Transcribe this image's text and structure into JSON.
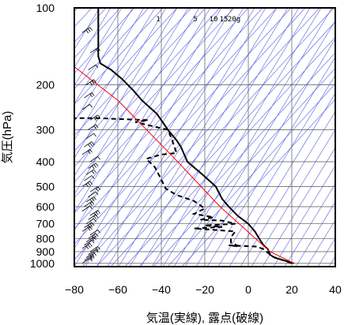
{
  "chart_data": {
    "type": "line",
    "title": "",
    "xlabel": "気温(実線), 露点(破線)",
    "ylabel": "気圧(hPa)",
    "xlim": [
      -80,
      40
    ],
    "ylim": [
      1030,
      100
    ],
    "y_scale": "log",
    "grid": true,
    "x_ticks": [
      -80,
      -60,
      -40,
      -20,
      0,
      20,
      40
    ],
    "x_tick_labels": [
      "−80",
      "−60",
      "−40",
      "−20",
      "0",
      "20",
      "40"
    ],
    "y_ticks": [
      100,
      200,
      300,
      400,
      500,
      600,
      700,
      800,
      900,
      1000
    ],
    "mixing_ratio_labels": [
      "1",
      "5",
      "10",
      "15",
      "20g"
    ],
    "series": [
      {
        "style": "solid",
        "color": "#000000",
        "points": [
          [
            21,
            1000
          ],
          [
            12,
            950
          ],
          [
            10,
            925
          ],
          [
            9,
            880
          ],
          [
            7,
            850
          ],
          [
            5,
            800
          ],
          [
            3,
            750
          ],
          [
            0,
            700
          ],
          [
            -5,
            650
          ],
          [
            -9,
            600
          ],
          [
            -12,
            560
          ],
          [
            -15,
            500
          ],
          [
            -21,
            450
          ],
          [
            -28,
            400
          ],
          [
            -31,
            350
          ],
          [
            -33,
            330
          ],
          [
            -37,
            300
          ],
          [
            -42,
            260
          ],
          [
            -49,
            230
          ],
          [
            -53,
            210
          ],
          [
            -58,
            190
          ],
          [
            -63,
            175
          ],
          [
            -68,
            165
          ],
          [
            -69,
            155
          ],
          [
            -69,
            100
          ]
        ]
      },
      {
        "style": "dashed",
        "color": "#000000",
        "points": [
          [
            20,
            1000
          ],
          [
            11,
            940
          ],
          [
            7,
            880
          ],
          [
            4,
            860
          ],
          [
            -9,
            850
          ],
          [
            -4,
            860
          ],
          [
            -8,
            830
          ],
          [
            -8,
            790
          ],
          [
            -6,
            750
          ],
          [
            -25,
            730
          ],
          [
            -12,
            720
          ],
          [
            -20,
            710
          ],
          [
            -6,
            700
          ],
          [
            -12,
            680
          ],
          [
            -22,
            675
          ],
          [
            -16,
            660
          ],
          [
            -25,
            640
          ],
          [
            -20,
            610
          ],
          [
            -25,
            570
          ],
          [
            -33,
            540
          ],
          [
            -38,
            510
          ],
          [
            -40,
            470
          ],
          [
            -43,
            420
          ],
          [
            -47,
            390
          ],
          [
            -40,
            375
          ],
          [
            -33,
            370
          ],
          [
            -35,
            330
          ],
          [
            -37,
            300
          ],
          [
            -52,
            280
          ],
          [
            -46,
            275
          ],
          [
            -70,
            270
          ],
          [
            -81,
            270
          ]
        ]
      },
      {
        "style": "solid",
        "color": "#ff0000",
        "points": [
          [
            21,
            1000
          ],
          [
            10,
            900
          ],
          [
            -13,
            600
          ],
          [
            -35,
            380
          ],
          [
            -60,
            230
          ],
          [
            -80,
            170
          ]
        ]
      }
    ]
  }
}
